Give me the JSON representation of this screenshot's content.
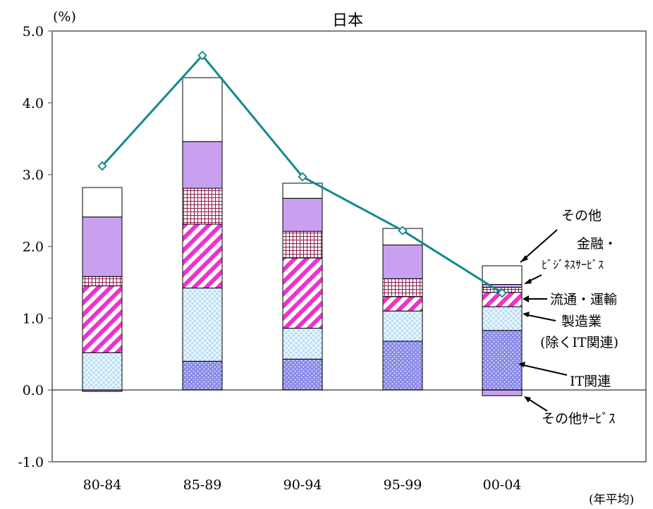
{
  "chart_data": {
    "type": "bar",
    "stacked": true,
    "title": "日本",
    "unit_label": "(%)",
    "xlabel_note": "(年平均)",
    "categories": [
      "80-84",
      "85-89",
      "90-94",
      "95-99",
      "00-04"
    ],
    "ylim": [
      -1.0,
      5.0
    ],
    "yticks": [
      "5.0",
      "4.0",
      "3.0",
      "2.0",
      "1.0",
      "0.0",
      "-1.0"
    ],
    "ytick_values": [
      5,
      4,
      3,
      2,
      1,
      0,
      -1
    ],
    "grid": false,
    "series": [
      {
        "name": "その他サービス",
        "values": [
          -0.02,
          0.0,
          0.0,
          0.0,
          -0.08
        ],
        "color": "#c9a0f0",
        "pattern": "solid"
      },
      {
        "name": "IT関連",
        "values": [
          0.0,
          0.4,
          0.43,
          0.68,
          0.83
        ],
        "color": "#8a8ae6",
        "pattern": "dots"
      },
      {
        "name": "製造業(除くIT関連)",
        "values": [
          0.52,
          1.02,
          0.43,
          0.42,
          0.33
        ],
        "color": "#a9d4f2",
        "pattern": "crosshatch"
      },
      {
        "name": "流通・運輸",
        "values": [
          0.93,
          0.89,
          0.98,
          0.2,
          0.2
        ],
        "color": "#ee33cc",
        "pattern": "diagonal"
      },
      {
        "name": "金融・ビジネスサービス",
        "values": [
          0.13,
          0.5,
          0.37,
          0.25,
          0.07
        ],
        "color": "#8b1a4a",
        "pattern": "grid"
      },
      {
        "name": "その他サービス",
        "values": [
          0.83,
          0.65,
          0.46,
          0.47,
          0.04
        ],
        "color": "#c9a0f0",
        "pattern": "solid"
      },
      {
        "name": "その他",
        "values": [
          0.41,
          0.89,
          0.21,
          0.23,
          0.26
        ],
        "color": "#ffffff",
        "pattern": "solid"
      }
    ],
    "line": {
      "values": [
        3.12,
        4.66,
        2.97,
        2.22,
        1.35
      ],
      "color": "#138a8a"
    },
    "annotations": [
      "その他",
      "金融・",
      "ﾋﾞｼﾞﾈｽｻｰﾋﾞｽ",
      "流通・運輸",
      "製造業",
      "(除くIT関連)",
      "IT関連",
      "その他ｻｰﾋﾞｽ"
    ]
  }
}
